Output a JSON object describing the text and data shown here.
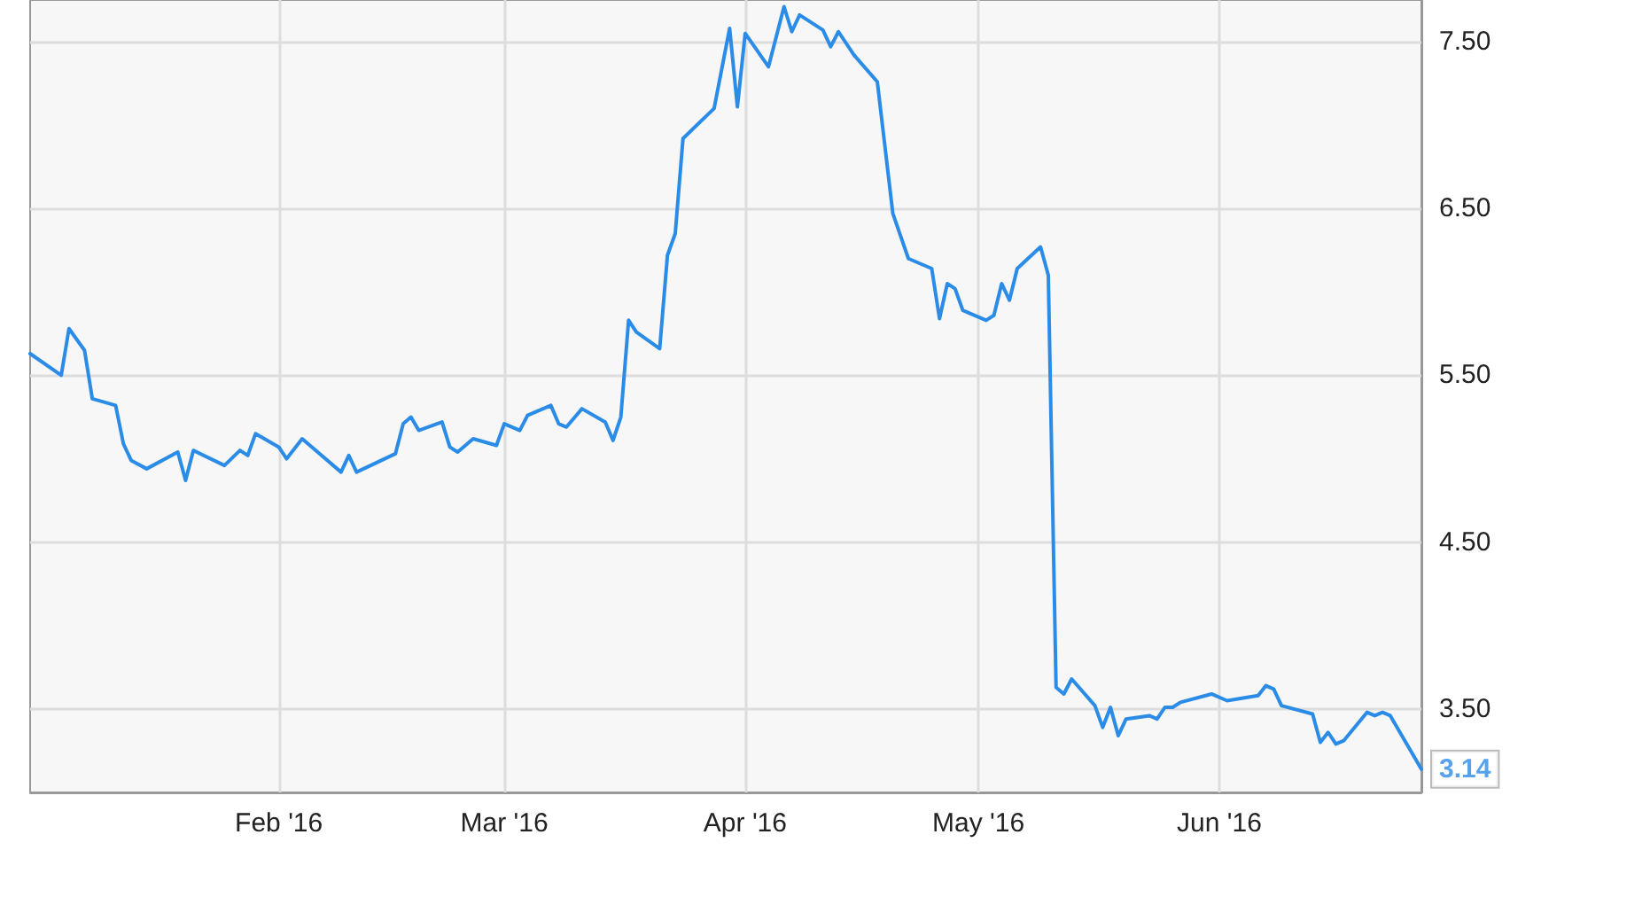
{
  "chart_data": {
    "type": "line",
    "x": [
      "2015-12-31",
      "2016-01-04",
      "2016-01-05",
      "2016-01-07",
      "2016-01-08",
      "2016-01-11",
      "2016-01-12",
      "2016-01-13",
      "2016-01-15",
      "2016-01-19",
      "2016-01-20",
      "2016-01-21",
      "2016-01-25",
      "2016-01-27",
      "2016-01-28",
      "2016-01-29",
      "2016-02-01",
      "2016-02-02",
      "2016-02-04",
      "2016-02-09",
      "2016-02-10",
      "2016-02-11",
      "2016-02-16",
      "2016-02-17",
      "2016-02-18",
      "2016-02-19",
      "2016-02-22",
      "2016-02-23",
      "2016-02-24",
      "2016-02-26",
      "2016-02-29",
      "2016-03-01",
      "2016-03-03",
      "2016-03-04",
      "2016-03-07",
      "2016-03-08",
      "2016-03-09",
      "2016-03-11",
      "2016-03-14",
      "2016-03-15",
      "2016-03-16",
      "2016-03-17",
      "2016-03-18",
      "2016-03-21",
      "2016-03-22",
      "2016-03-23",
      "2016-03-24",
      "2016-03-28",
      "2016-03-30",
      "2016-03-31",
      "2016-04-01",
      "2016-04-04",
      "2016-04-06",
      "2016-04-07",
      "2016-04-08",
      "2016-04-11",
      "2016-04-12",
      "2016-04-13",
      "2016-04-15",
      "2016-04-18",
      "2016-04-20",
      "2016-04-22",
      "2016-04-25",
      "2016-04-26",
      "2016-04-27",
      "2016-04-28",
      "2016-04-29",
      "2016-05-02",
      "2016-05-03",
      "2016-05-04",
      "2016-05-05",
      "2016-05-06",
      "2016-05-09",
      "2016-05-10",
      "2016-05-11",
      "2016-05-12",
      "2016-05-13",
      "2016-05-16",
      "2016-05-17",
      "2016-05-18",
      "2016-05-19",
      "2016-05-20",
      "2016-05-23",
      "2016-05-24",
      "2016-05-25",
      "2016-05-26",
      "2016-05-27",
      "2016-05-31",
      "2016-06-02",
      "2016-06-06",
      "2016-06-07",
      "2016-06-08",
      "2016-06-09",
      "2016-06-13",
      "2016-06-14",
      "2016-06-15",
      "2016-06-16",
      "2016-06-17",
      "2016-06-20",
      "2016-06-21",
      "2016-06-22",
      "2016-06-23",
      "2016-06-27"
    ],
    "series": [
      {
        "color": "#2b8ce8",
        "values": [
          5.63,
          5.5,
          5.78,
          5.65,
          5.36,
          5.32,
          5.09,
          4.99,
          4.94,
          5.04,
          4.87,
          5.05,
          4.96,
          5.05,
          5.02,
          5.15,
          5.07,
          5.0,
          5.12,
          4.92,
          5.02,
          4.92,
          5.03,
          5.21,
          5.25,
          5.17,
          5.22,
          5.07,
          5.04,
          5.12,
          5.08,
          5.21,
          5.17,
          5.26,
          5.32,
          5.21,
          5.19,
          5.3,
          5.22,
          5.11,
          5.25,
          5.83,
          5.76,
          5.66,
          6.22,
          6.35,
          6.92,
          7.1,
          7.58,
          7.11,
          7.55,
          7.35,
          7.71,
          7.56,
          7.66,
          7.57,
          7.47,
          7.56,
          7.42,
          7.26,
          6.47,
          6.2,
          6.14,
          5.84,
          6.05,
          6.02,
          5.89,
          5.83,
          5.86,
          6.05,
          5.95,
          6.14,
          6.27,
          6.1,
          3.63,
          3.59,
          3.68,
          3.52,
          3.39,
          3.51,
          3.34,
          3.44,
          3.46,
          3.44,
          3.51,
          3.51,
          3.54,
          3.59,
          3.55,
          3.58,
          3.64,
          3.62,
          3.52,
          3.47,
          3.3,
          3.36,
          3.29,
          3.31,
          3.48,
          3.46,
          3.48,
          3.46,
          3.14
        ]
      }
    ],
    "xlim": [
      "2015-12-31",
      "2016-06-27"
    ],
    "xticks": [
      {
        "value": "2016-02-01",
        "label": "Feb '16"
      },
      {
        "value": "2016-03-01",
        "label": "Mar '16"
      },
      {
        "value": "2016-04-01",
        "label": "Apr '16"
      },
      {
        "value": "2016-05-01",
        "label": "May '16"
      },
      {
        "value": "2016-06-01",
        "label": "Jun '16"
      }
    ],
    "ylim": [
      3.0,
      7.75
    ],
    "yticks": [
      {
        "value": 3.5,
        "label": "3.50"
      },
      {
        "value": 4.5,
        "label": "4.50"
      },
      {
        "value": 5.5,
        "label": "5.50"
      },
      {
        "value": 6.5,
        "label": "6.50"
      },
      {
        "value": 7.5,
        "label": "7.50"
      }
    ],
    "annotations": [
      {
        "text": "3.14",
        "x": "2016-06-27",
        "y": 3.14
      }
    ],
    "grid": true,
    "marker": "none",
    "line_style": "solid"
  }
}
